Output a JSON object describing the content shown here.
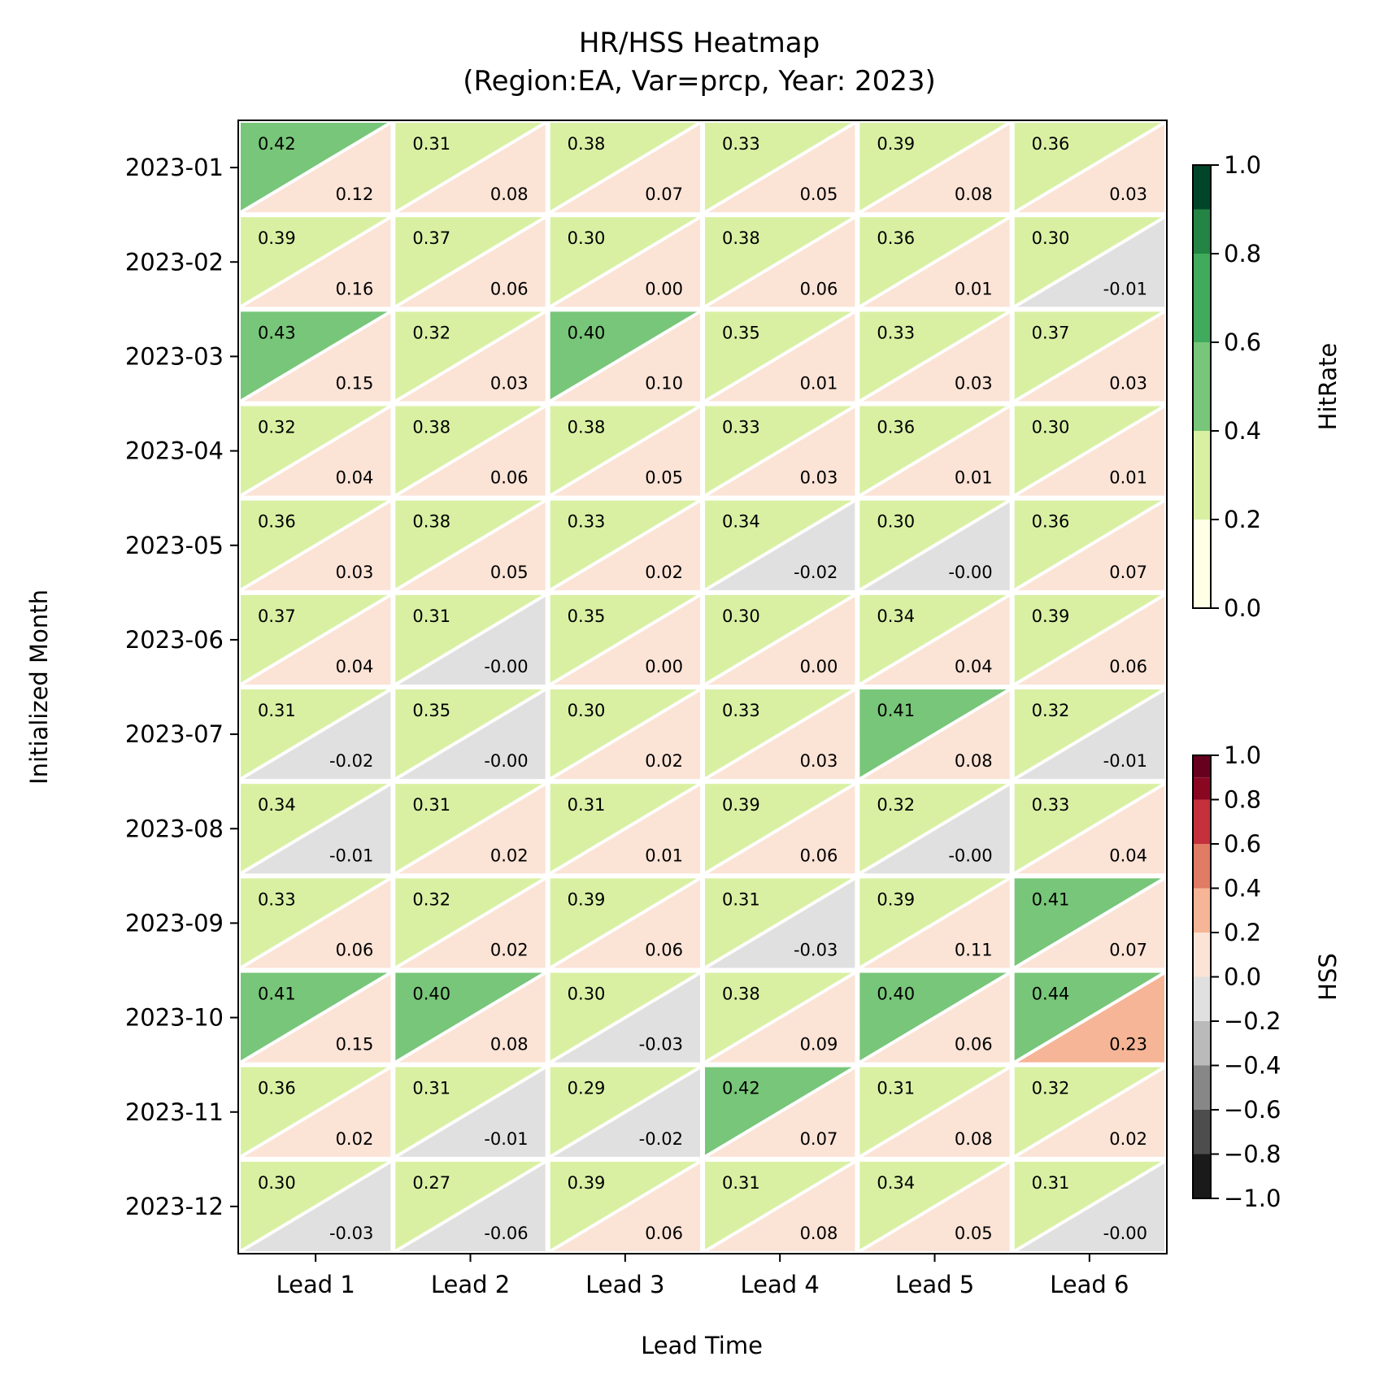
{
  "chart_data": {
    "type": "heatmap",
    "title": "HR/HSS Heatmap",
    "subtitle": "(Region:EA, Var=prcp, Year: 2023)",
    "xlabel": "Lead Time",
    "ylabel": "Initialized Month",
    "x_categories": [
      "Lead 1",
      "Lead 2",
      "Lead 3",
      "Lead 4",
      "Lead 5",
      "Lead 6"
    ],
    "y_categories": [
      "2023-01",
      "2023-02",
      "2023-03",
      "2023-04",
      "2023-05",
      "2023-06",
      "2023-07",
      "2023-08",
      "2023-09",
      "2023-10",
      "2023-11",
      "2023-12"
    ],
    "hitrate": [
      [
        0.42,
        0.31,
        0.38,
        0.33,
        0.39,
        0.36
      ],
      [
        0.39,
        0.37,
        0.3,
        0.38,
        0.36,
        0.3
      ],
      [
        0.43,
        0.32,
        0.4,
        0.35,
        0.33,
        0.37
      ],
      [
        0.32,
        0.38,
        0.38,
        0.33,
        0.36,
        0.3
      ],
      [
        0.36,
        0.38,
        0.33,
        0.34,
        0.3,
        0.36
      ],
      [
        0.37,
        0.31,
        0.35,
        0.3,
        0.34,
        0.39
      ],
      [
        0.31,
        0.35,
        0.3,
        0.33,
        0.41,
        0.32
      ],
      [
        0.34,
        0.31,
        0.31,
        0.39,
        0.32,
        0.33
      ],
      [
        0.33,
        0.32,
        0.39,
        0.31,
        0.39,
        0.41
      ],
      [
        0.41,
        0.4,
        0.3,
        0.38,
        0.4,
        0.44
      ],
      [
        0.36,
        0.31,
        0.29,
        0.42,
        0.31,
        0.32
      ],
      [
        0.3,
        0.27,
        0.39,
        0.31,
        0.34,
        0.31
      ]
    ],
    "hitrate_labels": [
      [
        "0.42",
        "0.31",
        "0.38",
        "0.33",
        "0.39",
        "0.36"
      ],
      [
        "0.39",
        "0.37",
        "0.30",
        "0.38",
        "0.36",
        "0.30"
      ],
      [
        "0.43",
        "0.32",
        "0.40",
        "0.35",
        "0.33",
        "0.37"
      ],
      [
        "0.32",
        "0.38",
        "0.38",
        "0.33",
        "0.36",
        "0.30"
      ],
      [
        "0.36",
        "0.38",
        "0.33",
        "0.34",
        "0.30",
        "0.36"
      ],
      [
        "0.37",
        "0.31",
        "0.35",
        "0.30",
        "0.34",
        "0.39"
      ],
      [
        "0.31",
        "0.35",
        "0.30",
        "0.33",
        "0.41",
        "0.32"
      ],
      [
        "0.34",
        "0.31",
        "0.31",
        "0.39",
        "0.32",
        "0.33"
      ],
      [
        "0.33",
        "0.32",
        "0.39",
        "0.31",
        "0.39",
        "0.41"
      ],
      [
        "0.41",
        "0.40",
        "0.30",
        "0.38",
        "0.40",
        "0.44"
      ],
      [
        "0.36",
        "0.31",
        "0.29",
        "0.42",
        "0.31",
        "0.32"
      ],
      [
        "0.30",
        "0.27",
        "0.39",
        "0.31",
        "0.34",
        "0.31"
      ]
    ],
    "hss": [
      [
        0.12,
        0.08,
        0.07,
        0.05,
        0.08,
        0.03
      ],
      [
        0.16,
        0.06,
        0.0,
        0.06,
        0.01,
        -0.01
      ],
      [
        0.15,
        0.03,
        0.1,
        0.01,
        0.03,
        0.03
      ],
      [
        0.04,
        0.06,
        0.05,
        0.03,
        0.01,
        0.01
      ],
      [
        0.03,
        0.05,
        0.02,
        -0.02,
        -0.001,
        0.07
      ],
      [
        0.04,
        -0.001,
        0.0,
        0.0,
        0.04,
        0.06
      ],
      [
        -0.02,
        -0.001,
        0.02,
        0.03,
        0.08,
        -0.01
      ],
      [
        -0.01,
        0.02,
        0.01,
        0.06,
        -0.001,
        0.04
      ],
      [
        0.06,
        0.02,
        0.06,
        -0.03,
        0.11,
        0.07
      ],
      [
        0.15,
        0.08,
        -0.03,
        0.09,
        0.06,
        0.23
      ],
      [
        0.02,
        -0.01,
        -0.02,
        0.07,
        0.08,
        0.02
      ],
      [
        -0.03,
        -0.06,
        0.06,
        0.08,
        0.05,
        -0.001
      ]
    ],
    "hss_labels": [
      [
        "0.12",
        "0.08",
        "0.07",
        "0.05",
        "0.08",
        "0.03"
      ],
      [
        "0.16",
        "0.06",
        "0.00",
        "0.06",
        "0.01",
        "-0.01"
      ],
      [
        "0.15",
        "0.03",
        "0.10",
        "0.01",
        "0.03",
        "0.03"
      ],
      [
        "0.04",
        "0.06",
        "0.05",
        "0.03",
        "0.01",
        "0.01"
      ],
      [
        "0.03",
        "0.05",
        "0.02",
        "-0.02",
        "-0.00",
        "0.07"
      ],
      [
        "0.04",
        "-0.00",
        "0.00",
        "0.00",
        "0.04",
        "0.06"
      ],
      [
        "-0.02",
        "-0.00",
        "0.02",
        "0.03",
        "0.08",
        "-0.01"
      ],
      [
        "-0.01",
        "0.02",
        "0.01",
        "0.06",
        "-0.00",
        "0.04"
      ],
      [
        "0.06",
        "0.02",
        "0.06",
        "-0.03",
        "0.11",
        "0.07"
      ],
      [
        "0.15",
        "0.08",
        "-0.03",
        "0.09",
        "0.06",
        "0.23"
      ],
      [
        "0.02",
        "-0.01",
        "-0.02",
        "0.07",
        "0.08",
        "0.02"
      ],
      [
        "-0.03",
        "-0.06",
        "0.06",
        "0.08",
        "0.05",
        "-0.00"
      ]
    ],
    "colorbars": [
      {
        "label": "HitRate",
        "range": [
          0.0,
          1.0
        ],
        "ticks": [
          "0.0",
          "0.2",
          "0.4",
          "0.6",
          "0.8",
          "1.0"
        ],
        "boundaries": [
          0.0,
          0.2,
          0.4,
          0.6,
          0.8,
          0.9,
          1.0
        ],
        "colors": [
          "#ffffe5",
          "#d9f0a3",
          "#78c679",
          "#41ab5d",
          "#238443",
          "#004529"
        ]
      },
      {
        "label": "HSS",
        "range": [
          -1.0,
          1.0
        ],
        "ticks": [
          "−1.0",
          "−0.8",
          "−0.6",
          "−0.4",
          "−0.2",
          "0.0",
          "0.2",
          "0.4",
          "0.6",
          "0.8",
          "1.0"
        ],
        "boundaries": [
          -1.0,
          -0.8,
          -0.6,
          -0.4,
          -0.2,
          0.0,
          0.2,
          0.4,
          0.6,
          0.8,
          0.9,
          1.0
        ],
        "colors": [
          "#1a1a1a",
          "#4d4d4d",
          "#878787",
          "#bababa",
          "#e0e0e0",
          "#fbe3d6",
          "#f6b596",
          "#e07b64",
          "#c4303c",
          "#8a0722",
          "#67001f"
        ]
      }
    ]
  }
}
